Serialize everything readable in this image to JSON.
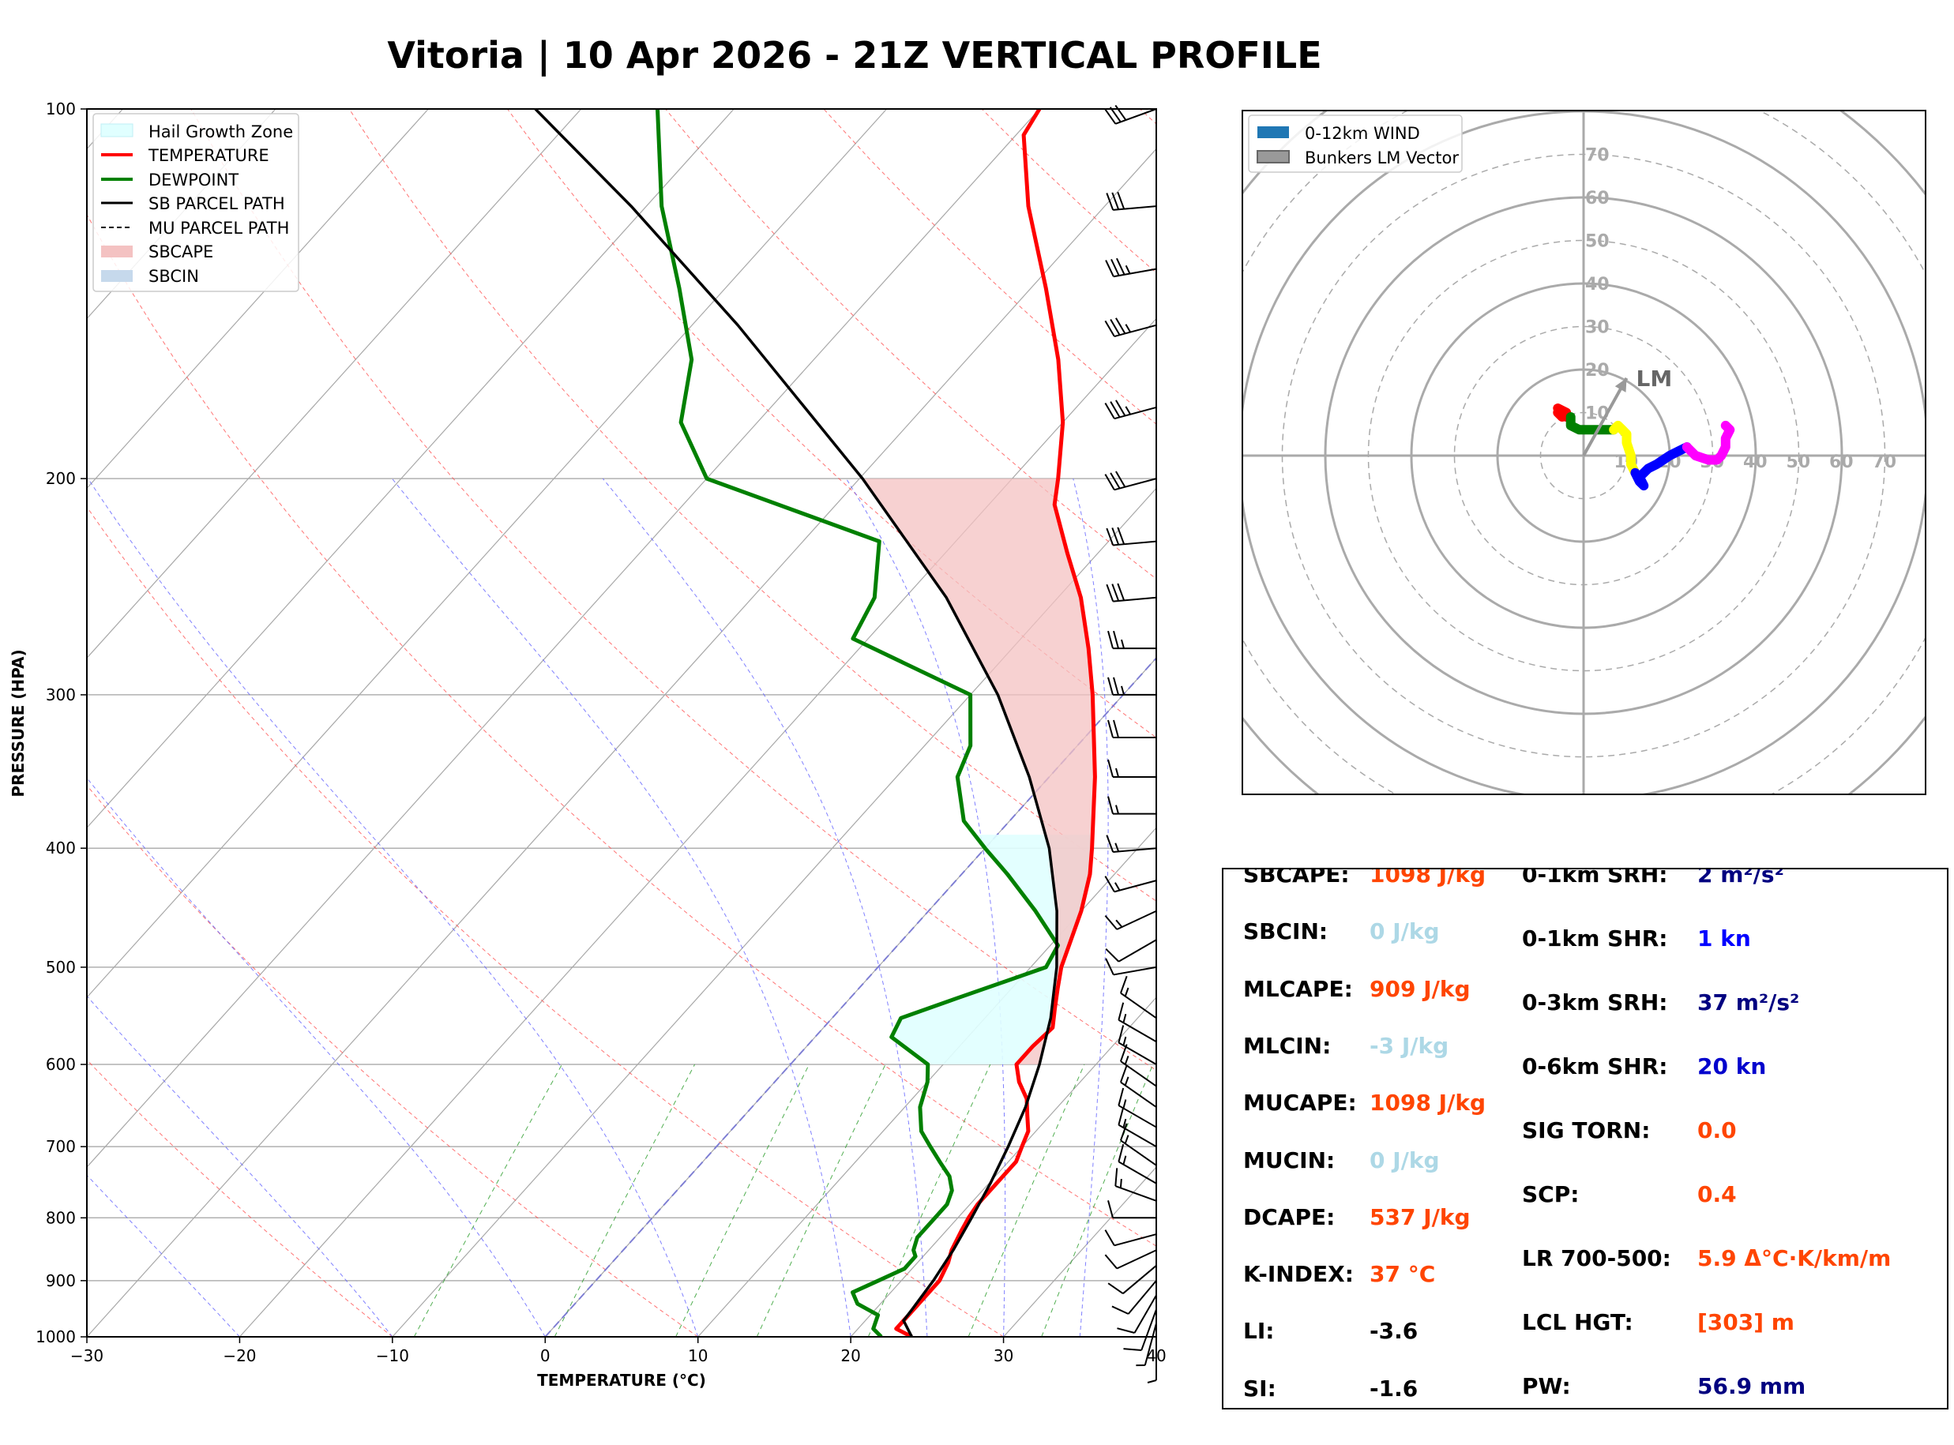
{
  "title": "Vitoria | 10 Apr 2026 - 21Z VERTICAL PROFILE",
  "chart_data": [
    {
      "type": "skewt",
      "xlabel": "TEMPERATURE (°C)",
      "ylabel": "PRESSURE (HPA)",
      "xlim": [
        -30,
        40
      ],
      "ylim": [
        1000,
        100
      ],
      "x_ticks": [
        -30,
        -20,
        -10,
        0,
        10,
        20,
        30,
        40
      ],
      "x_tick_labels": [
        "−30",
        "−20",
        "−10",
        "0",
        "10",
        "20",
        "30",
        "40"
      ],
      "y_ticks": [
        100,
        200,
        300,
        400,
        500,
        600,
        700,
        800,
        900,
        1000
      ],
      "legend": {
        "location": "top-left",
        "entries": [
          "Hail Growth Zone",
          "TEMPERATURE",
          "DEWPOINT",
          "SB PARCEL PATH",
          "MU PARCEL PATH",
          "SBCAPE",
          "SBCIN"
        ]
      },
      "series": [
        {
          "name": "TEMPERATURE",
          "color": "#ff0000",
          "points": [
            [
              1000,
              24
            ],
            [
              985,
              22.5
            ],
            [
              950,
              22.5
            ],
            [
              920,
              22.5
            ],
            [
              900,
              22.5
            ],
            [
              870,
              22
            ],
            [
              850,
              21.5
            ],
            [
              820,
              21
            ],
            [
              800,
              20.7
            ],
            [
              780,
              20.5
            ],
            [
              760,
              20.5
            ],
            [
              740,
              20.5
            ],
            [
              720,
              20.5
            ],
            [
              700,
              20
            ],
            [
              680,
              19.5
            ],
            [
              660,
              18.5
            ],
            [
              640,
              17.5
            ],
            [
              620,
              16
            ],
            [
              600,
              14.8
            ],
            [
              580,
              14.8
            ],
            [
              560,
              15
            ],
            [
              540,
              14
            ],
            [
              520,
              13
            ],
            [
              500,
              12
            ],
            [
              450,
              10
            ],
            [
              420,
              8.4
            ],
            [
              400,
              7
            ],
            [
              350,
              3
            ],
            [
              300,
              -2
            ],
            [
              275,
              -5
            ],
            [
              250,
              -8.5
            ],
            [
              230,
              -12
            ],
            [
              210,
              -15.7
            ],
            [
              200,
              -17
            ],
            [
              180,
              -20
            ],
            [
              160,
              -24
            ],
            [
              140,
              -29
            ],
            [
              120,
              -35
            ],
            [
              105,
              -39.5
            ],
            [
              100,
              -40
            ]
          ]
        },
        {
          "name": "DEWPOINT",
          "color": "#008000",
          "points": [
            [
              1000,
              22
            ],
            [
              985,
              21
            ],
            [
              960,
              20.5
            ],
            [
              940,
              18.5
            ],
            [
              920,
              17.5
            ],
            [
              900,
              18.5
            ],
            [
              880,
              19.5
            ],
            [
              860,
              19.5
            ],
            [
              850,
              19
            ],
            [
              830,
              18.5
            ],
            [
              800,
              18.5
            ],
            [
              780,
              18.5
            ],
            [
              760,
              18
            ],
            [
              740,
              17
            ],
            [
              720,
              15.5
            ],
            [
              700,
              14
            ],
            [
              680,
              12.5
            ],
            [
              650,
              11
            ],
            [
              620,
              10
            ],
            [
              600,
              9
            ],
            [
              570,
              5
            ],
            [
              550,
              4.5
            ],
            [
              530,
              7
            ],
            [
              500,
              11
            ],
            [
              480,
              10.5
            ],
            [
              450,
              7
            ],
            [
              420,
              3
            ],
            [
              400,
              0
            ],
            [
              380,
              -3
            ],
            [
              350,
              -6
            ],
            [
              330,
              -7
            ],
            [
              300,
              -10
            ],
            [
              270,
              -21
            ],
            [
              250,
              -22
            ],
            [
              225,
              -25
            ],
            [
              200,
              -40
            ],
            [
              180,
              -45
            ],
            [
              160,
              -48
            ],
            [
              140,
              -53
            ],
            [
              120,
              -59
            ],
            [
              100,
              -65
            ]
          ]
        },
        {
          "name": "SB PARCEL PATH",
          "color": "#000000",
          "points": [
            [
              1000,
              24
            ],
            [
              970,
              22.5
            ],
            [
              950,
              22.4
            ],
            [
              900,
              22.1
            ],
            [
              850,
              21.6
            ],
            [
              800,
              20.9
            ],
            [
              750,
              20.1
            ],
            [
              700,
              19.1
            ],
            [
              650,
              17.9
            ],
            [
              600,
              16.3
            ],
            [
              550,
              14.3
            ],
            [
              500,
              11.7
            ],
            [
              450,
              8.4
            ],
            [
              400,
              4.2
            ],
            [
              350,
              -1.3
            ],
            [
              300,
              -8.2
            ],
            [
              250,
              -17.3
            ],
            [
              200,
              -29.8
            ],
            [
              150,
              -47
            ],
            [
              120,
              -61
            ],
            [
              100,
              -73
            ]
          ]
        }
      ],
      "wind_barbs": [
        {
          "p": 1000,
          "dir": 180,
          "spd": 5
        },
        {
          "p": 975,
          "dir": 195,
          "spd": 8
        },
        {
          "p": 950,
          "dir": 200,
          "spd": 10
        },
        {
          "p": 925,
          "dir": 210,
          "spd": 12
        },
        {
          "p": 900,
          "dir": 220,
          "spd": 12
        },
        {
          "p": 875,
          "dir": 230,
          "spd": 12
        },
        {
          "p": 850,
          "dir": 245,
          "spd": 10
        },
        {
          "p": 825,
          "dir": 255,
          "spd": 10
        },
        {
          "p": 800,
          "dir": 270,
          "spd": 12
        },
        {
          "p": 775,
          "dir": 290,
          "spd": 15
        },
        {
          "p": 750,
          "dir": 300,
          "spd": 18
        },
        {
          "p": 725,
          "dir": 305,
          "spd": 18
        },
        {
          "p": 700,
          "dir": 300,
          "spd": 15
        },
        {
          "p": 675,
          "dir": 300,
          "spd": 15
        },
        {
          "p": 650,
          "dir": 305,
          "spd": 15
        },
        {
          "p": 625,
          "dir": 305,
          "spd": 15
        },
        {
          "p": 600,
          "dir": 300,
          "spd": 15
        },
        {
          "p": 575,
          "dir": 300,
          "spd": 15
        },
        {
          "p": 550,
          "dir": 305,
          "spd": 15
        },
        {
          "p": 500,
          "dir": 260,
          "spd": 12
        },
        {
          "p": 475,
          "dir": 240,
          "spd": 10
        },
        {
          "p": 450,
          "dir": 245,
          "spd": 15
        },
        {
          "p": 425,
          "dir": 255,
          "spd": 15
        },
        {
          "p": 400,
          "dir": 265,
          "spd": 15
        },
        {
          "p": 375,
          "dir": 270,
          "spd": 15
        },
        {
          "p": 350,
          "dir": 270,
          "spd": 18
        },
        {
          "p": 325,
          "dir": 270,
          "spd": 20
        },
        {
          "p": 300,
          "dir": 270,
          "spd": 25
        },
        {
          "p": 275,
          "dir": 270,
          "spd": 25
        },
        {
          "p": 250,
          "dir": 265,
          "spd": 30
        },
        {
          "p": 225,
          "dir": 265,
          "spd": 32
        },
        {
          "p": 200,
          "dir": 255,
          "spd": 33
        },
        {
          "p": 175,
          "dir": 255,
          "spd": 35
        },
        {
          "p": 150,
          "dir": 255,
          "spd": 35
        },
        {
          "p": 135,
          "dir": 260,
          "spd": 35
        },
        {
          "p": 120,
          "dir": 265,
          "spd": 33
        },
        {
          "p": 100,
          "dir": 250,
          "spd": 30
        }
      ]
    },
    {
      "type": "hodograph",
      "ring_labels": [
        "10",
        "20",
        "30",
        "40",
        "50",
        "60",
        "70"
      ],
      "legend": {
        "location": "top-left",
        "entries": [
          "0-12km WIND",
          "Bunkers LM Vector"
        ]
      },
      "storm_motion_label": "LM",
      "storm_motion": {
        "u": 10,
        "v": 18
      },
      "segments": [
        {
          "color": "#ff0000",
          "points": [
            [
              -5,
              10
            ],
            [
              -6,
              11
            ],
            [
              -4,
              10
            ],
            [
              -5,
              9
            ],
            [
              -6,
              10
            ],
            [
              -4,
              9
            ]
          ]
        },
        {
          "color": "#008000",
          "points": [
            [
              -3,
              9
            ],
            [
              -3,
              7
            ],
            [
              -1,
              6
            ],
            [
              2,
              6
            ],
            [
              5,
              6
            ],
            [
              7,
              6
            ]
          ]
        },
        {
          "color": "#ffff00",
          "points": [
            [
              7,
              6
            ],
            [
              8,
              7
            ],
            [
              9,
              6
            ],
            [
              10,
              5
            ],
            [
              10,
              3
            ],
            [
              11,
              0
            ],
            [
              11,
              -2
            ],
            [
              12,
              -4
            ]
          ]
        },
        {
          "color": "#0000ff",
          "points": [
            [
              12,
              -4
            ],
            [
              13,
              -6
            ],
            [
              14,
              -7
            ],
            [
              13,
              -5
            ],
            [
              15,
              -3
            ],
            [
              17,
              -2
            ],
            [
              20,
              0
            ],
            [
              22,
              1
            ],
            [
              24,
              2
            ]
          ]
        },
        {
          "color": "#ff00ff",
          "points": [
            [
              24,
              2
            ],
            [
              26,
              0
            ],
            [
              29,
              -1
            ],
            [
              31,
              -1
            ],
            [
              32,
              0
            ],
            [
              33,
              2
            ],
            [
              33,
              4
            ],
            [
              34,
              6
            ],
            [
              33,
              7
            ]
          ]
        }
      ]
    }
  ],
  "params": {
    "left": [
      {
        "label": "SBCAPE:",
        "value": "1098 J/kg",
        "color": "#ff4500"
      },
      {
        "label": "SBCIN:",
        "value": "0 J/kg",
        "color": "#add8e6"
      },
      {
        "label": "MLCAPE:",
        "value": "909 J/kg",
        "color": "#ff4500"
      },
      {
        "label": "MLCIN:",
        "value": "-3 J/kg",
        "color": "#add8e6"
      },
      {
        "label": "MUCAPE:",
        "value": "1098 J/kg",
        "color": "#ff4500"
      },
      {
        "label": "MUCIN:",
        "value": "0 J/kg",
        "color": "#add8e6"
      },
      {
        "label": "DCAPE:",
        "value": "537 J/kg",
        "color": "#ff4500"
      },
      {
        "label": "K-INDEX:",
        "value": "37 °C",
        "color": "#ff4500"
      },
      {
        "label": "LI:",
        "value": "-3.6",
        "color": "#000000"
      },
      {
        "label": "SI:",
        "value": "-1.6",
        "color": "#000000"
      }
    ],
    "right": [
      {
        "label": "0-1km SRH:",
        "value": "2 m²/s²",
        "color": "#000080"
      },
      {
        "label": "0-1km SHR:",
        "value": "1 kn",
        "color": "#0000ff"
      },
      {
        "label": "0-3km SRH:",
        "value": "37 m²/s²",
        "color": "#000080"
      },
      {
        "label": "0-6km SHR:",
        "value": "20 kn",
        "color": "#0000cd"
      },
      {
        "label": "SIG TORN:",
        "value": "0.0",
        "color": "#ff4500"
      },
      {
        "label": "SCP:",
        "value": "0.4",
        "color": "#ff4500"
      },
      {
        "label": "LR 700-500:",
        "value": "5.9 Δ°C·K/km/m",
        "color": "#ff4500"
      },
      {
        "label": "LCL HGT:",
        "value": "[303] m",
        "color": "#ff4500"
      },
      {
        "label": "PW:",
        "value": "56.9 mm",
        "color": "#000080"
      }
    ]
  }
}
